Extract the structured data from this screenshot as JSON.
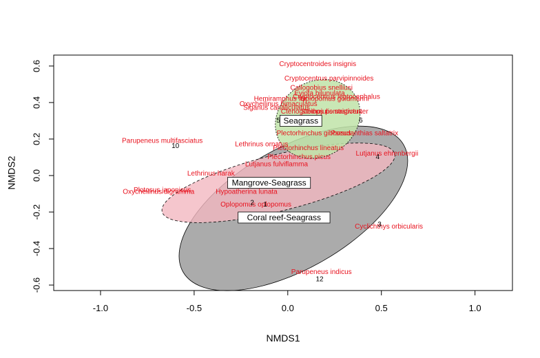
{
  "chart_data": {
    "type": "scatter",
    "title": "",
    "xlabel": "NMDS1",
    "ylabel": "NMDS2",
    "xlim": [
      -1.25,
      1.2
    ],
    "ylim": [
      -0.63,
      0.66
    ],
    "x_ticks": [
      -1.0,
      -0.5,
      0.0,
      0.5,
      1.0
    ],
    "x_tick_labels": [
      "-1.0",
      "-0.5",
      "0.0",
      "0.5",
      "1.0"
    ],
    "y_ticks": [
      -0.6,
      -0.4,
      -0.2,
      0.0,
      0.2,
      0.4,
      0.6
    ],
    "y_tick_labels": [
      "-0.6",
      "-0.4",
      "-0.2",
      "0.0",
      "0.2",
      "0.4",
      "0.6"
    ],
    "grid": false,
    "colors": {
      "species": "#e8121e",
      "species_muted": "#b8860b",
      "seagrass_fill": "#bfe3a8",
      "mangrove_fill": "#f2b8c0",
      "coral_fill": "#a6a6a6"
    },
    "ellipses": [
      {
        "group": "Coral reef-Seagrass",
        "cx": 0.03,
        "cy": -0.18,
        "rx": 0.68,
        "ry": 0.15,
        "angle_deg": -30,
        "fill": "#a6a6a6",
        "opacity": 0.95,
        "dash": "none"
      },
      {
        "group": "Mangrove-Seagrass",
        "cx": -0.05,
        "cy": -0.04,
        "rx": 0.64,
        "ry": 0.07,
        "angle_deg": -14,
        "fill": "#f2b8c0",
        "opacity": 0.8,
        "dash": "4,3"
      },
      {
        "group": "Seagrass",
        "cx": 0.16,
        "cy": 0.31,
        "rx": 0.2,
        "ry": 0.11,
        "angle_deg": 58,
        "fill": "#bfe3a8",
        "opacity": 0.85,
        "dash": "2,2"
      }
    ],
    "habitat_labels": [
      {
        "text": "Seagrass",
        "x": 0.07,
        "y": 0.3
      },
      {
        "text": "Mangrove-Seagrass",
        "x": -0.1,
        "y": -0.04
      },
      {
        "text": "Coral reef-Seagrass",
        "x": -0.02,
        "y": -0.23
      }
    ],
    "site_labels": [
      {
        "text": "10",
        "x": -0.6,
        "y": 0.15
      },
      {
        "text": "12",
        "x": 0.17,
        "y": -0.58
      },
      {
        "text": "5",
        "x": -0.05,
        "y": 0.29
      },
      {
        "text": "6",
        "x": 0.39,
        "y": 0.29
      },
      {
        "text": "4",
        "x": 0.48,
        "y": 0.09
      },
      {
        "text": "3",
        "x": 0.49,
        "y": -0.28
      },
      {
        "text": "2",
        "x": -0.19,
        "y": -0.16
      },
      {
        "text": "1",
        "x": -0.12,
        "y": -0.17
      }
    ],
    "species": [
      {
        "name": "Cryptocentroides insignis",
        "x": 0.16,
        "y": 0.6
      },
      {
        "name": "Cryptocentrus parvipinnoides",
        "x": 0.22,
        "y": 0.52
      },
      {
        "name": "Callogobius snelliusi",
        "x": 0.18,
        "y": 0.47
      },
      {
        "name": "Eviota bilunulata",
        "x": 0.17,
        "y": 0.44
      },
      {
        "name": "Cryptocentrus leptocephalus",
        "x": 0.26,
        "y": 0.42
      },
      {
        "name": "Oplopomus goldmanni",
        "x": 0.25,
        "y": 0.41
      },
      {
        "name": "Hemiramphus far",
        "x": -0.04,
        "y": 0.41
      },
      {
        "name": "Oxycheilinus bimaculatus",
        "x": -0.05,
        "y": 0.38
      },
      {
        "name": "Siganus canaliculatus",
        "x": -0.06,
        "y": 0.36
      },
      {
        "name": "Ctenogobiops pomastictus",
        "x": 0.18,
        "y": 0.34
      },
      {
        "name": "Stethojulis strigiventer",
        "x": 0.25,
        "y": 0.34
      },
      {
        "name": "Plectorhinchus gibbosus",
        "x": 0.14,
        "y": 0.22
      },
      {
        "name": "Pseudanthias saltatrix",
        "x": 0.41,
        "y": 0.22
      },
      {
        "name": "Lethrinus ornatus",
        "x": -0.14,
        "y": 0.16
      },
      {
        "name": "Plectorhinchus lineatus",
        "x": 0.11,
        "y": 0.14
      },
      {
        "name": "Plectorhinchus picus",
        "x": 0.06,
        "y": 0.09
      },
      {
        "name": "Lutjanus ehrenbergii",
        "x": 0.53,
        "y": 0.11
      },
      {
        "name": "Lutjanus fulviflamma",
        "x": -0.06,
        "y": 0.05
      },
      {
        "name": "Lethrinus harak",
        "x": -0.41,
        "y": 0.0
      },
      {
        "name": "Parupeneus multifasciatus",
        "x": -0.67,
        "y": 0.18
      },
      {
        "name": "Plotosus japonicus",
        "x": -0.67,
        "y": -0.09
      },
      {
        "name": "Oxycheilinus digramma",
        "x": -0.69,
        "y": -0.1
      },
      {
        "name": "Hypoatherina lunata",
        "x": -0.22,
        "y": -0.1
      },
      {
        "name": "Oplopomus oplopomus",
        "x": -0.17,
        "y": -0.17
      },
      {
        "name": "Parupeneus indicus",
        "x": 0.18,
        "y": -0.54
      },
      {
        "name": "Cyclichthys orbicularis",
        "x": 0.54,
        "y": -0.29
      }
    ]
  }
}
